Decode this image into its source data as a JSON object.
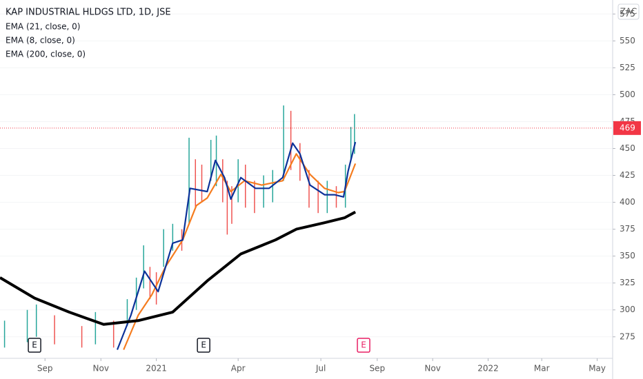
{
  "chart_data": {
    "type": "line",
    "title": "KAP INDUSTRIAL HLDGS LTD, 1D, JSE",
    "currency": "ZAC",
    "last_price": 469,
    "last_price_color": "#f23645",
    "xlim": [
      -50,
      624
    ],
    "xticks": [
      {
        "value": -0.5,
        "label": "Sep"
      },
      {
        "value": 61,
        "label": "Nov"
      },
      {
        "value": 122,
        "label": "2021"
      },
      {
        "value": 212,
        "label": "Apr"
      },
      {
        "value": 303,
        "label": "Jul"
      },
      {
        "value": 365,
        "label": "Sep"
      },
      {
        "value": 426,
        "label": "Nov"
      },
      {
        "value": 487,
        "label": "2022"
      },
      {
        "value": 546,
        "label": "Mar"
      },
      {
        "value": 607,
        "label": "May"
      }
    ],
    "ylim": [
      255,
      588
    ],
    "yticks": [
      275,
      300,
      325,
      350,
      375,
      400,
      425,
      450,
      475,
      500,
      525,
      550,
      575
    ],
    "price_bars": {
      "x": [
        -45,
        -20,
        -10,
        10,
        40,
        55,
        75,
        90,
        100,
        108,
        115,
        122,
        130,
        140,
        150,
        158,
        165,
        172,
        182,
        188,
        195,
        200,
        205,
        212,
        220,
        230,
        240,
        250,
        262,
        270,
        280,
        290,
        300,
        310,
        320,
        330,
        336,
        340
      ],
      "low": [
        265,
        270,
        275,
        268,
        265,
        268,
        265,
        285,
        300,
        320,
        310,
        305,
        340,
        355,
        355,
        380,
        395,
        400,
        420,
        415,
        400,
        370,
        380,
        400,
        395,
        390,
        395,
        400,
        420,
        430,
        420,
        395,
        390,
        390,
        395,
        395,
        440,
        445
      ],
      "high": [
        290,
        300,
        305,
        295,
        285,
        298,
        290,
        310,
        330,
        360,
        340,
        335,
        375,
        380,
        375,
        460,
        440,
        435,
        458,
        462,
        440,
        420,
        415,
        440,
        435,
        420,
        425,
        430,
        490,
        485,
        455,
        430,
        420,
        420,
        415,
        435,
        470,
        482
      ],
      "up_color": "#26a69a",
      "down_color": "#ef5350"
    },
    "series": [
      {
        "name": "EMA (21, close, 0)",
        "color": "#f57c1f",
        "x": [
          86,
          102,
          117,
          132,
          151,
          166,
          178,
          193,
          204,
          219,
          238,
          261,
          276,
          291,
          307,
          322,
          329,
          341
        ],
        "values": [
          263,
          295,
          314,
          340,
          365,
          397,
          404,
          426,
          410,
          420,
          416,
          420,
          445,
          426,
          413,
          409,
          410,
          436
        ]
      },
      {
        "name": "EMA (8, close, 0)",
        "color": "#0c3299",
        "x": [
          79,
          94,
          109,
          124,
          140,
          151,
          159,
          178,
          187,
          197,
          204,
          215,
          231,
          246,
          261,
          272,
          280,
          291,
          307,
          318,
          328,
          333,
          341
        ],
        "values": [
          263,
          295,
          336,
          317,
          362,
          365,
          413,
          410,
          439,
          423,
          403,
          423,
          413,
          413,
          423,
          455,
          445,
          416,
          407,
          407,
          405,
          429,
          456
        ]
      },
      {
        "name": "EMA (200, close, 0)",
        "color": "#000000",
        "x": [
          -50,
          -12,
          26,
          64,
          102,
          140,
          178,
          215,
          253,
          276,
          307,
          329,
          341
        ],
        "values": [
          330,
          311,
          298,
          286.5,
          290,
          298,
          327,
          352,
          365,
          375,
          381,
          385.6,
          391
        ]
      }
    ],
    "events": [
      {
        "x": -12,
        "label": "E",
        "color": "#131722"
      },
      {
        "x": 174,
        "label": "E",
        "color": "#131722"
      },
      {
        "x": 350,
        "label": "E",
        "color": "#e91e63"
      }
    ]
  }
}
